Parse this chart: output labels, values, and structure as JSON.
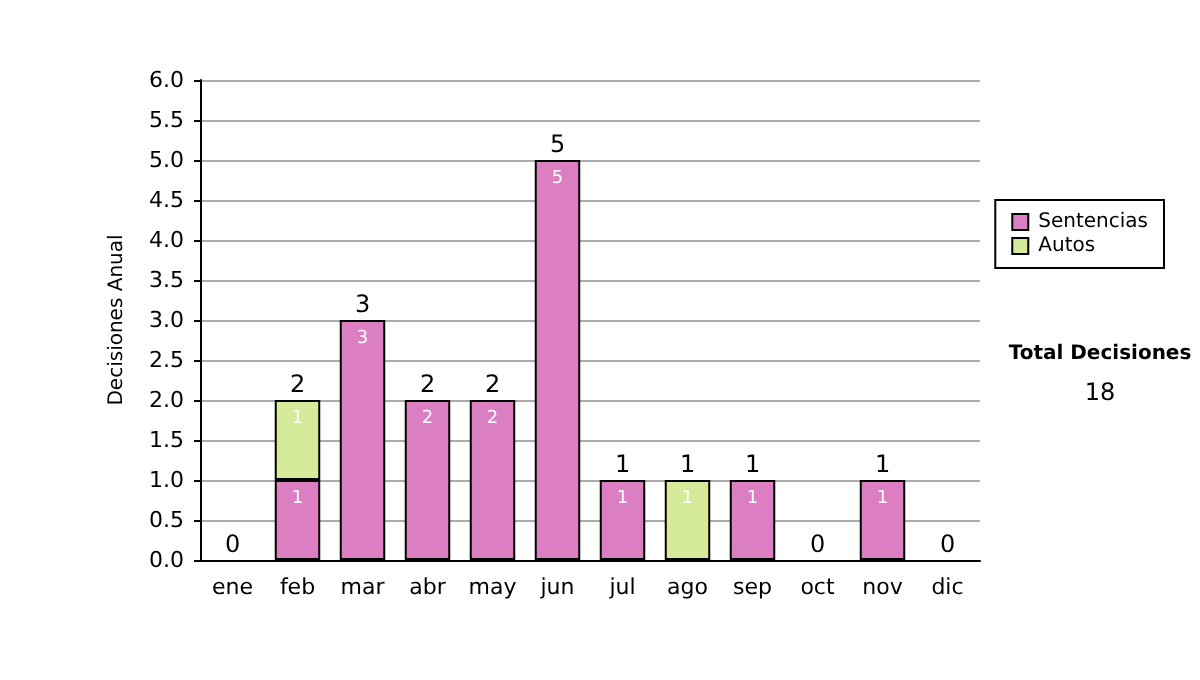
{
  "chart_data": {
    "type": "bar",
    "stacked": true,
    "ylabel": "Decisiones Anual",
    "categories": [
      "ene",
      "feb",
      "mar",
      "abr",
      "may",
      "jun",
      "jul",
      "ago",
      "sep",
      "oct",
      "nov",
      "dic"
    ],
    "series": [
      {
        "name": "Sentencias",
        "color": "#dc7fc2",
        "values": [
          0,
          1,
          3,
          2,
          2,
          5,
          1,
          0,
          1,
          0,
          1,
          0
        ],
        "value_labels": [
          null,
          "1",
          "3",
          "2",
          "2",
          "5",
          "1",
          null,
          "1",
          null,
          "1",
          null
        ]
      },
      {
        "name": "Autos",
        "color": "#d6eb99",
        "values": [
          0,
          1,
          0,
          0,
          0,
          0,
          0,
          1,
          0,
          0,
          0,
          0
        ],
        "value_labels": [
          null,
          "1",
          null,
          null,
          null,
          null,
          null,
          "1",
          null,
          null,
          null,
          null
        ]
      }
    ],
    "totals": [
      "0",
      "2",
      "3",
      "2",
      "2",
      "5",
      "1",
      "1",
      "1",
      "0",
      "1",
      "0"
    ],
    "ylim": [
      0,
      6
    ],
    "yticks": [
      "0.0",
      "0.5",
      "1.0",
      "1.5",
      "2.0",
      "2.5",
      "3.0",
      "3.5",
      "4.0",
      "4.5",
      "5.0",
      "5.5",
      "6.0"
    ],
    "grid": "y",
    "legend": "right",
    "annotations": [
      "Total Decisiones",
      "18"
    ]
  }
}
